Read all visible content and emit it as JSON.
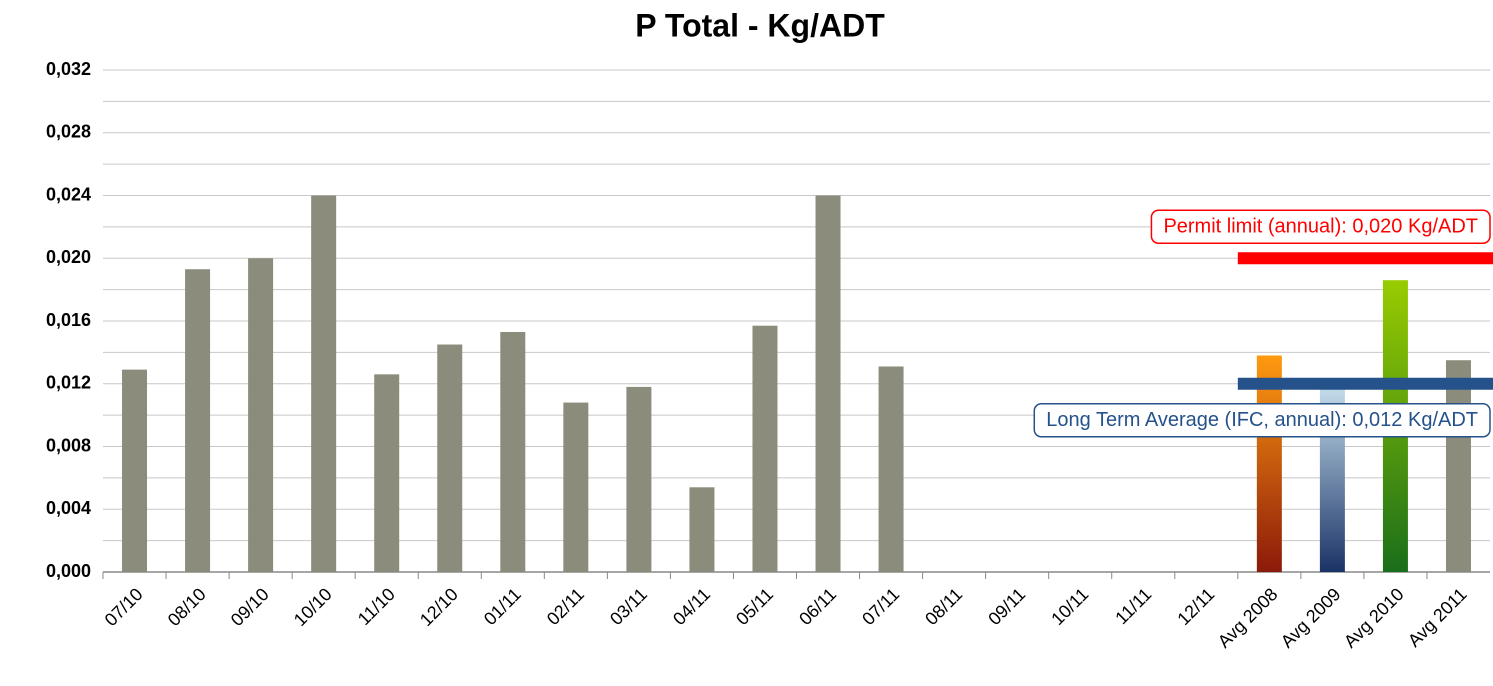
{
  "chart_data": {
    "type": "bar",
    "title": "P Total - Kg/ADT",
    "categories": [
      "07/10",
      "08/10",
      "09/10",
      "10/10",
      "11/10",
      "12/10",
      "01/11",
      "02/11",
      "03/11",
      "04/11",
      "05/11",
      "06/11",
      "07/11",
      "08/11",
      "09/11",
      "10/11",
      "11/11",
      "12/11",
      "Avg 2008",
      "Avg 2009",
      "Avg 2010",
      "Avg 2011"
    ],
    "values": [
      0.0129,
      0.0193,
      0.02,
      0.024,
      0.0126,
      0.0145,
      0.0153,
      0.0108,
      0.0118,
      0.0054,
      0.0157,
      0.024,
      0.0131,
      null,
      null,
      null,
      null,
      null,
      0.0138,
      0.0118,
      0.0186,
      0.0135
    ],
    "colors": [
      "#8c8c7c",
      "#8c8c7c",
      "#8c8c7c",
      "#8c8c7c",
      "#8c8c7c",
      "#8c8c7c",
      "#8c8c7c",
      "#8c8c7c",
      "#8c8c7c",
      "#8c8c7c",
      "#8c8c7c",
      "#8c8c7c",
      "#8c8c7c",
      "#8c8c7c",
      "#8c8c7c",
      "#8c8c7c",
      "#8c8c7c",
      "#8c8c7c",
      "#ff9a10",
      "#c4dcea",
      "#99cc00",
      "#8c8c7c"
    ],
    "colors_bottom": [
      "#8c8c7c",
      "#8c8c7c",
      "#8c8c7c",
      "#8c8c7c",
      "#8c8c7c",
      "#8c8c7c",
      "#8c8c7c",
      "#8c8c7c",
      "#8c8c7c",
      "#8c8c7c",
      "#8c8c7c",
      "#8c8c7c",
      "#8c8c7c",
      "#8c8c7c",
      "#8c8c7c",
      "#8c8c7c",
      "#8c8c7c",
      "#8c8c7c",
      "#8b1a0a",
      "#1a3366",
      "#1a6e1a",
      "#8c8c7c"
    ],
    "ylim": [
      0,
      0.032
    ],
    "yticks": [
      {
        "value": 0,
        "label": "0,000"
      },
      {
        "value": 0.004,
        "label": "0,004"
      },
      {
        "value": 0.008,
        "label": "0,008"
      },
      {
        "value": 0.012,
        "label": "0,012"
      },
      {
        "value": 0.016,
        "label": "0,016"
      },
      {
        "value": 0.02,
        "label": "0,020"
      },
      {
        "value": 0.024,
        "label": "0,024"
      },
      {
        "value": 0.028,
        "label": "0,028"
      },
      {
        "value": 0.032,
        "label": "0,032"
      }
    ],
    "minor_yticks": [
      0.002,
      0.006,
      0.01,
      0.014,
      0.018,
      0.022,
      0.026,
      0.03
    ],
    "grid": true,
    "reference_lines": [
      {
        "value": 0.02,
        "label": "Permit limit (annual): 0,020 Kg/ADT",
        "color": "#ff0000"
      },
      {
        "value": 0.012,
        "label": "Long Term Average (IFC, annual): 0,012 Kg/ADT",
        "color": "#25528a"
      }
    ]
  }
}
